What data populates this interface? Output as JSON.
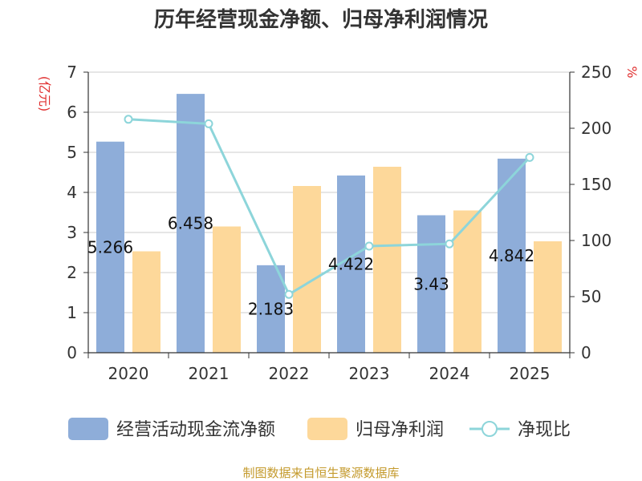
{
  "chart_data": {
    "type": "bar",
    "title": "历年经营现金净额、归母净利润情况",
    "categories": [
      "2020",
      "2021",
      "2022",
      "2023",
      "2024",
      "2025"
    ],
    "series": [
      {
        "name": "经营活动现金流净额",
        "type": "bar",
        "axis": "left",
        "color": "#8eadd9",
        "values": [
          5.266,
          6.458,
          2.183,
          4.422,
          3.43,
          4.842
        ],
        "labels": [
          "5.266",
          "6.458",
          "2.183",
          "4.422",
          "3.43",
          "4.842"
        ]
      },
      {
        "name": "归母净利润",
        "type": "bar",
        "axis": "left",
        "color": "#fdd89a",
        "values": [
          2.53,
          3.15,
          4.16,
          4.64,
          3.55,
          2.78
        ]
      },
      {
        "name": "净现比",
        "type": "line",
        "axis": "right",
        "color": "#8dd5da",
        "values": [
          208,
          204,
          52,
          95,
          97,
          174
        ]
      }
    ],
    "y_left": {
      "label": "(亿元)",
      "min": 0,
      "max": 7,
      "ticks": [
        "0",
        "1",
        "2",
        "3",
        "4",
        "5",
        "6",
        "7"
      ]
    },
    "y_right": {
      "label": "%",
      "min": 0,
      "max": 250,
      "ticks": [
        "0",
        "50",
        "100",
        "150",
        "200",
        "250"
      ]
    },
    "grid": true,
    "legend_position": "bottom"
  },
  "source_text": "制图数据来自恒生聚源数据库"
}
